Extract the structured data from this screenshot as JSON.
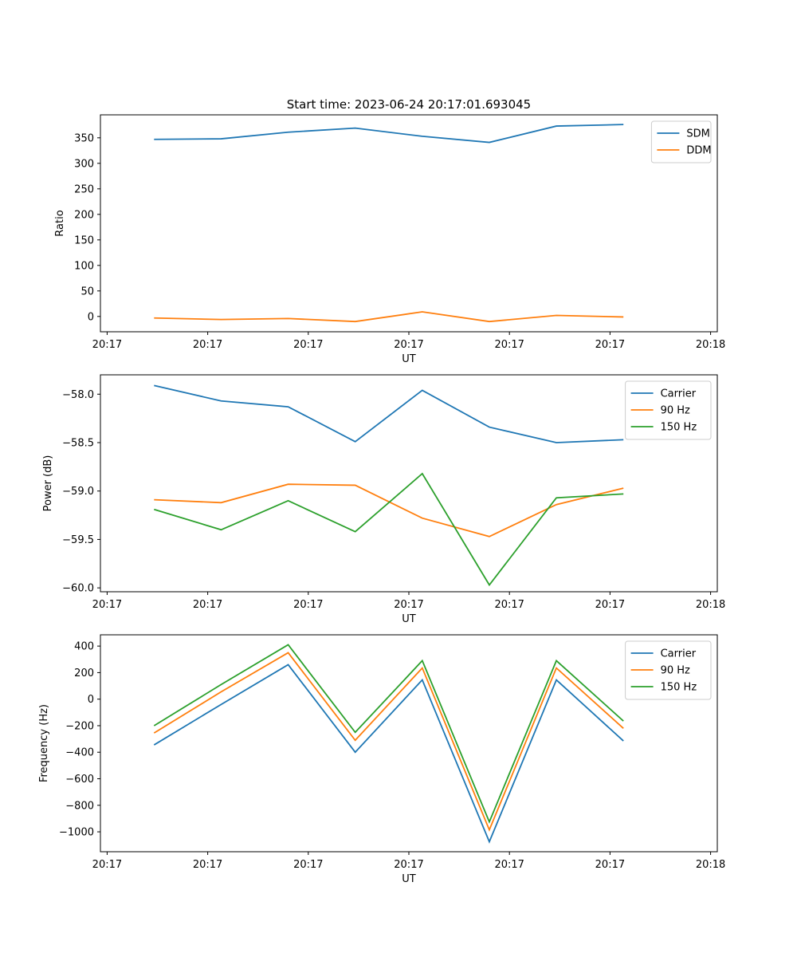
{
  "figure": {
    "title": "Start time: 2023-06-24 20:17:01.693045"
  },
  "chart_data": [
    {
      "type": "line",
      "xlabel": "UT",
      "ylabel": "Ratio",
      "x": [
        1,
        2,
        3,
        4,
        5,
        6,
        7,
        8
      ],
      "xlim": [
        0.2,
        9.4
      ],
      "ylim": [
        -30,
        395
      ],
      "xticks": [
        0.3,
        1.8,
        3.3,
        4.8,
        6.3,
        7.8,
        9.3
      ],
      "xtick_labels": [
        "20:17",
        "20:17",
        "20:17",
        "20:17",
        "20:17",
        "20:17",
        "20:18"
      ],
      "yticks": [
        0,
        50,
        100,
        150,
        200,
        250,
        300,
        350
      ],
      "ytick_labels": [
        "0",
        "50",
        "100",
        "150",
        "200",
        "250",
        "300",
        "350"
      ],
      "legend_position": "top-right",
      "grid": false,
      "series": [
        {
          "name": "SDM",
          "color": "#1f77b4",
          "values": [
            347,
            348,
            361,
            369,
            353,
            341,
            373,
            376
          ]
        },
        {
          "name": "DDM",
          "color": "#ff7f0e",
          "values": [
            -3,
            -6,
            -4,
            -10,
            9,
            -10,
            2,
            -1
          ]
        }
      ]
    },
    {
      "type": "line",
      "xlabel": "UT",
      "ylabel": "Power (dB)",
      "x": [
        1,
        2,
        3,
        4,
        5,
        6,
        7,
        8
      ],
      "xlim": [
        0.2,
        9.4
      ],
      "ylim": [
        -60.04,
        -57.8
      ],
      "xticks": [
        0.3,
        1.8,
        3.3,
        4.8,
        6.3,
        7.8,
        9.3
      ],
      "xtick_labels": [
        "20:17",
        "20:17",
        "20:17",
        "20:17",
        "20:17",
        "20:17",
        "20:18"
      ],
      "yticks": [
        -60.0,
        -59.5,
        -59.0,
        -58.5,
        -58.0
      ],
      "ytick_labels": [
        "−60.0",
        "−59.5",
        "−59.0",
        "−58.5",
        "−58.0"
      ],
      "legend_position": "top-right",
      "grid": false,
      "series": [
        {
          "name": "Carrier",
          "color": "#1f77b4",
          "values": [
            -57.91,
            -58.07,
            -58.13,
            -58.49,
            -57.96,
            -58.34,
            -58.5,
            -58.47
          ]
        },
        {
          "name": "90 Hz",
          "color": "#ff7f0e",
          "values": [
            -59.09,
            -59.12,
            -58.93,
            -58.94,
            -59.28,
            -59.47,
            -59.14,
            -58.97
          ]
        },
        {
          "name": "150 Hz",
          "color": "#2ca02c",
          "values": [
            -59.19,
            -59.4,
            -59.1,
            -59.42,
            -58.82,
            -59.97,
            -59.07,
            -59.03
          ]
        }
      ]
    },
    {
      "type": "line",
      "xlabel": "UT",
      "ylabel": "Frequency (Hz)",
      "x": [
        1,
        2,
        3,
        4,
        5,
        6,
        7,
        8
      ],
      "xlim": [
        0.2,
        9.4
      ],
      "ylim": [
        -1150,
        485
      ],
      "xticks": [
        0.3,
        1.8,
        3.3,
        4.8,
        6.3,
        7.8,
        9.3
      ],
      "xtick_labels": [
        "20:17",
        "20:17",
        "20:17",
        "20:17",
        "20:17",
        "20:17",
        "20:18"
      ],
      "yticks": [
        -1000,
        -800,
        -600,
        -400,
        -200,
        0,
        200,
        400
      ],
      "ytick_labels": [
        "−1000",
        "−800",
        "−600",
        "−400",
        "−200",
        "0",
        "200",
        "400"
      ],
      "legend_position": "top-right",
      "grid": false,
      "series": [
        {
          "name": "Carrier",
          "color": "#1f77b4",
          "values": [
            -345,
            -40,
            260,
            -400,
            145,
            -1075,
            145,
            -315
          ]
        },
        {
          "name": "90 Hz",
          "color": "#ff7f0e",
          "values": [
            -255,
            55,
            350,
            -310,
            235,
            -985,
            235,
            -220
          ]
        },
        {
          "name": "150 Hz",
          "color": "#2ca02c",
          "values": [
            -200,
            110,
            410,
            -250,
            290,
            -925,
            290,
            -165
          ]
        }
      ]
    }
  ]
}
